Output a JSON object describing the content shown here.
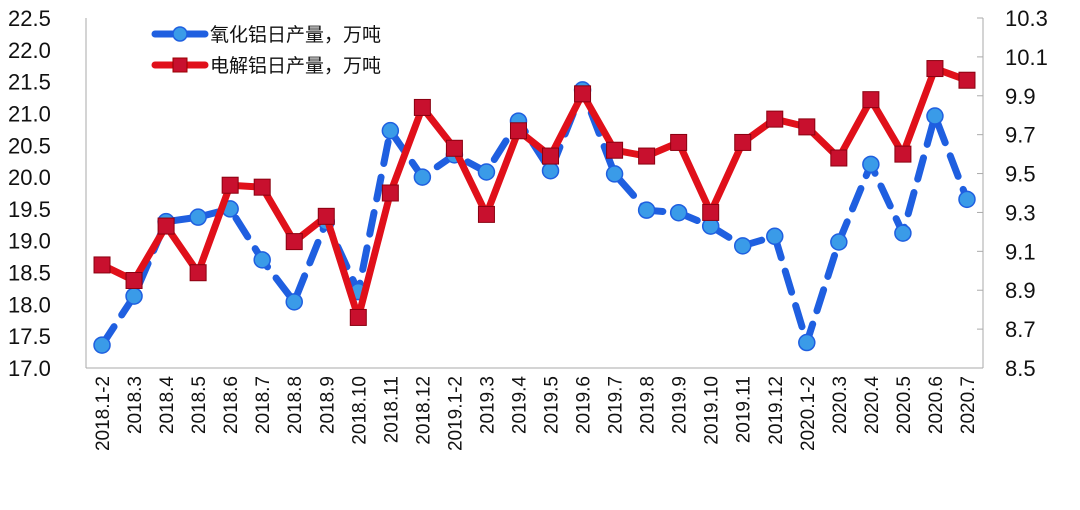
{
  "chart_data": {
    "type": "line",
    "title": "",
    "xlabel": "",
    "ylabel": "",
    "legend_position": "top-left",
    "grid": false,
    "categories": [
      "2018.1-2",
      "2018.3",
      "2018.4",
      "2018.5",
      "2018.6",
      "2018.7",
      "2018.8",
      "2018.9",
      "2018.10",
      "2018.11",
      "2018.12",
      "2019.1-2",
      "2019.3",
      "2019.4",
      "2019.5",
      "2019.6",
      "2019.7",
      "2019.8",
      "2019.9",
      "2019.10",
      "2019.11",
      "2019.12",
      "2020.1-2",
      "2020.3",
      "2020.4",
      "2020.5",
      "2020.6",
      "2020.7"
    ],
    "y_left": {
      "ylim": [
        17.0,
        22.5
      ],
      "ticks": [
        "17.0",
        "17.5",
        "18.0",
        "18.5",
        "19.0",
        "19.5",
        "20.0",
        "20.5",
        "21.0",
        "21.5",
        "22.0",
        "22.5"
      ]
    },
    "y_right": {
      "ylim": [
        8.5,
        10.3
      ],
      "ticks": [
        "8.5",
        "8.7",
        "8.9",
        "9.1",
        "9.3",
        "9.5",
        "9.7",
        "9.9",
        "10.1",
        "10.3"
      ]
    },
    "series": [
      {
        "name": "氧化铝日产量，万吨",
        "axis": "left",
        "color": "#1f5fe0",
        "style": "dashed",
        "marker": "circle",
        "values": [
          17.36,
          18.13,
          19.3,
          19.37,
          19.5,
          18.7,
          18.04,
          19.3,
          18.2,
          20.73,
          20.0,
          20.35,
          20.08,
          20.88,
          20.1,
          21.37,
          20.05,
          19.48,
          19.44,
          19.23,
          18.92,
          19.07,
          17.4,
          18.98,
          20.2,
          19.12,
          20.96,
          19.65
        ]
      },
      {
        "name": "电解铝日产量，万吨",
        "axis": "right",
        "color": "#e0101a",
        "style": "solid",
        "marker": "square",
        "values": [
          9.03,
          8.95,
          9.23,
          8.99,
          9.44,
          9.43,
          9.15,
          9.28,
          8.76,
          9.4,
          9.84,
          9.63,
          9.29,
          9.72,
          9.59,
          9.91,
          9.62,
          9.59,
          9.66,
          9.3,
          9.66,
          9.78,
          9.74,
          9.58,
          9.88,
          9.6,
          10.04,
          9.98
        ]
      }
    ]
  }
}
